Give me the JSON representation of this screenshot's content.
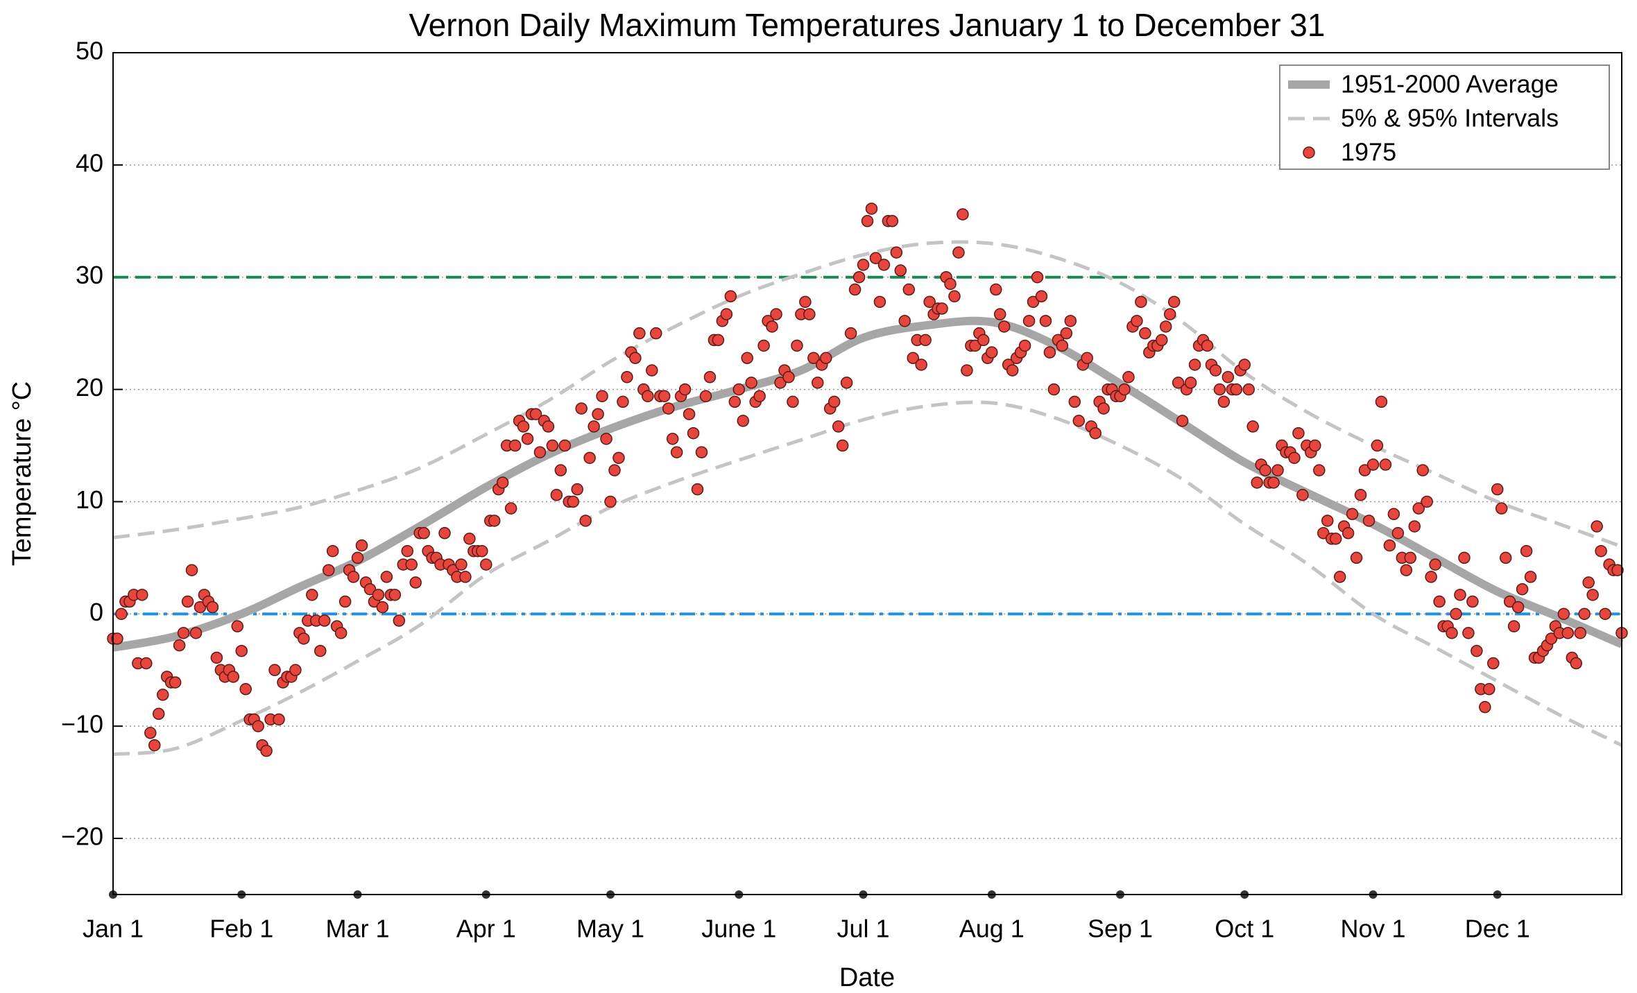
{
  "chart_data": {
    "type": "climate",
    "title": "Vernon Daily Maximum Temperatures January 1 to December 31",
    "xlabel": "Date",
    "ylabel": "Temperature °C",
    "xlim": [
      1,
      365
    ],
    "ylim": [
      -25,
      50
    ],
    "xticks": [
      {
        "value": 1,
        "label": "Jan 1"
      },
      {
        "value": 32,
        "label": "Feb 1"
      },
      {
        "value": 60,
        "label": "Mar 1"
      },
      {
        "value": 91,
        "label": "Apr 1"
      },
      {
        "value": 121,
        "label": "May 1"
      },
      {
        "value": 152,
        "label": "June 1"
      },
      {
        "value": 182,
        "label": "Jul 1"
      },
      {
        "value": 213,
        "label": "Aug 1"
      },
      {
        "value": 244,
        "label": "Sep 1"
      },
      {
        "value": 274,
        "label": "Oct 1"
      },
      {
        "value": 305,
        "label": "Nov 1"
      },
      {
        "value": 335,
        "label": "Dec 1"
      }
    ],
    "yticks": [
      {
        "value": -20,
        "label": "−20"
      },
      {
        "value": -10,
        "label": "−10"
      },
      0,
      10,
      20,
      30,
      40,
      50
    ],
    "grid": true,
    "legend": "upper right",
    "hlines": [
      {
        "value": 30,
        "color": "#178a50",
        "dash": "dashed"
      },
      {
        "value": 0,
        "color": "#1a90e8",
        "dash": "dashdot"
      }
    ],
    "curve_x": [
      1,
      16,
      32,
      46,
      60,
      75,
      91,
      106,
      121,
      136,
      152,
      167,
      182,
      197,
      213,
      228,
      244,
      259,
      274,
      289,
      305,
      320,
      335,
      350,
      365
    ],
    "series": [
      {
        "name": "1951-2000 Average",
        "color": "#a6a6a6",
        "kind": "line",
        "values": [
          -3,
          -2,
          0,
          2.4,
          4.7,
          7.8,
          11.3,
          14.2,
          16.5,
          18.4,
          20,
          21.7,
          24.6,
          25.7,
          26,
          24,
          20.5,
          17,
          13.5,
          10.8,
          8,
          5,
          2,
          -0.3,
          -2.7
        ]
      },
      {
        "name": "5% & 95% Intervals",
        "color": "#c4c4c4",
        "kind": "band",
        "lower": [
          -12.5,
          -12,
          -9.5,
          -7,
          -4.2,
          -1,
          3.5,
          6.5,
          9.5,
          11.7,
          13.7,
          15.5,
          17.3,
          18.5,
          18.8,
          17.5,
          15,
          12,
          8,
          4.5,
          0,
          -3,
          -6,
          -9,
          -11.7
        ],
        "upper": [
          6.8,
          7.5,
          8.5,
          9.5,
          11,
          13,
          16,
          19,
          22.5,
          25.5,
          28.3,
          30.3,
          32,
          33,
          33,
          31.8,
          29.5,
          26,
          21.5,
          18,
          15,
          12.5,
          10,
          8,
          6
        ]
      },
      {
        "name": "1975",
        "color": "#e8453c",
        "kind": "scatter",
        "x": [
          1,
          2,
          3,
          4,
          5,
          6,
          7,
          8,
          9,
          10,
          11,
          12,
          13,
          14,
          15,
          16,
          17,
          18,
          19,
          20,
          21,
          22,
          23,
          24,
          25,
          26,
          27,
          28,
          29,
          30,
          31,
          32,
          33,
          34,
          35,
          36,
          37,
          38,
          39,
          40,
          41,
          42,
          43,
          44,
          45,
          46,
          47,
          48,
          49,
          50,
          51,
          52,
          53,
          54,
          55,
          56,
          57,
          58,
          59,
          60,
          61,
          62,
          63,
          64,
          65,
          66,
          67,
          68,
          69,
          70,
          71,
          72,
          73,
          74,
          75,
          76,
          77,
          78,
          79,
          80,
          81,
          82,
          83,
          84,
          85,
          86,
          87,
          88,
          89,
          90,
          91,
          92,
          93,
          94,
          95,
          96,
          97,
          98,
          99,
          100,
          101,
          102,
          103,
          104,
          105,
          106,
          107,
          108,
          109,
          110,
          111,
          112,
          113,
          114,
          115,
          116,
          117,
          118,
          119,
          120,
          121,
          122,
          123,
          124,
          125,
          126,
          127,
          128,
          129,
          130,
          131,
          132,
          133,
          134,
          135,
          136,
          137,
          138,
          139,
          140,
          141,
          142,
          143,
          144,
          145,
          146,
          147,
          148,
          149,
          150,
          151,
          152,
          153,
          154,
          155,
          156,
          157,
          158,
          159,
          160,
          161,
          162,
          163,
          164,
          165,
          166,
          167,
          168,
          169,
          170,
          171,
          172,
          173,
          174,
          175,
          176,
          177,
          178,
          179,
          180,
          181,
          182,
          183,
          184,
          185,
          186,
          187,
          188,
          189,
          190,
          191,
          192,
          193,
          194,
          195,
          196,
          197,
          198,
          199,
          200,
          201,
          202,
          203,
          204,
          205,
          206,
          207,
          208,
          209,
          210,
          211,
          212,
          213,
          214,
          215,
          216,
          217,
          218,
          219,
          220,
          221,
          222,
          223,
          224,
          225,
          226,
          227,
          228,
          229,
          230,
          231,
          232,
          233,
          234,
          235,
          236,
          237,
          238,
          239,
          240,
          241,
          242,
          243,
          244,
          245,
          246,
          247,
          248,
          249,
          250,
          251,
          252,
          253,
          254,
          255,
          256,
          257,
          258,
          259,
          260,
          261,
          262,
          263,
          264,
          265,
          266,
          267,
          268,
          269,
          270,
          271,
          272,
          273,
          274,
          275,
          276,
          277,
          278,
          279,
          280,
          281,
          282,
          283,
          284,
          285,
          286,
          287,
          288,
          289,
          290,
          291,
          292,
          293,
          294,
          295,
          296,
          297,
          298,
          299,
          300,
          301,
          302,
          303,
          304,
          305,
          306,
          307,
          308,
          309,
          310,
          311,
          312,
          313,
          314,
          315,
          316,
          317,
          318,
          319,
          320,
          321,
          322,
          323,
          324,
          325,
          326,
          327,
          328,
          329,
          330,
          331,
          332,
          333,
          334,
          335,
          336,
          337,
          338,
          339,
          340,
          341,
          342,
          343,
          344,
          345,
          346,
          347,
          348,
          349,
          350,
          351,
          352,
          353,
          354,
          355,
          356,
          357,
          358,
          359,
          360,
          361,
          362,
          363,
          364,
          365
        ],
        "values": [
          -2.2,
          -2.2,
          0,
          1.1,
          1.1,
          1.7,
          -4.4,
          1.7,
          -4.4,
          -10.6,
          -11.7,
          -8.9,
          -7.2,
          -5.6,
          -6.1,
          -6.1,
          -2.8,
          -1.7,
          1.1,
          3.9,
          -1.7,
          0.6,
          1.7,
          1.1,
          0.6,
          -3.9,
          -5,
          -5.6,
          -5,
          -5.6,
          -1.1,
          -3.3,
          -6.7,
          -9.4,
          -9.4,
          -10,
          -11.7,
          -12.2,
          -9.4,
          -5,
          -9.4,
          -6.1,
          -5.6,
          -5.6,
          -5,
          -1.7,
          -2.2,
          -0.6,
          1.7,
          -0.6,
          -3.3,
          -0.6,
          3.9,
          5.6,
          -1.1,
          -1.7,
          1.1,
          3.9,
          3.3,
          5,
          6.1,
          2.8,
          2.2,
          1.1,
          1.7,
          0.6,
          3.3,
          1.7,
          1.7,
          -0.6,
          4.4,
          5.6,
          4.4,
          2.8,
          7.2,
          7.2,
          5.6,
          5,
          5,
          4.4,
          7.2,
          4.4,
          3.9,
          3.3,
          4.4,
          3.3,
          6.7,
          5.6,
          5.6,
          5.6,
          4.4,
          8.3,
          8.3,
          11.1,
          11.7,
          15,
          9.4,
          15,
          17.2,
          16.7,
          15.6,
          17.8,
          17.8,
          14.4,
          17.2,
          16.7,
          15,
          10.6,
          12.8,
          15,
          10,
          10,
          11.1,
          18.3,
          8.3,
          13.9,
          16.7,
          17.8,
          19.4,
          15.6,
          10,
          12.8,
          13.9,
          18.9,
          21.1,
          23.3,
          22.8,
          25,
          20,
          19.4,
          21.7,
          25,
          19.4,
          19.4,
          18.3,
          15.6,
          14.4,
          19.4,
          20,
          17.8,
          16.1,
          11.1,
          14.4,
          19.4,
          21.1,
          24.4,
          24.4,
          26.1,
          26.7,
          28.3,
          18.9,
          20,
          17.2,
          22.8,
          20.6,
          18.9,
          19.4,
          23.9,
          26.1,
          25.6,
          26.7,
          20.6,
          21.7,
          21.1,
          18.9,
          23.9,
          26.7,
          27.8,
          26.7,
          22.8,
          20.6,
          22.2,
          22.8,
          18.3,
          18.9,
          16.7,
          15,
          20.6,
          25,
          28.9,
          30,
          31.1,
          35,
          36.1,
          31.7,
          27.8,
          31.1,
          35,
          35,
          32.2,
          30.6,
          26.1,
          28.9,
          22.8,
          24.4,
          22.2,
          24.4,
          27.8,
          26.7,
          27.2,
          27.2,
          30,
          29.4,
          28.3,
          32.2,
          35.6,
          21.7,
          23.9,
          23.9,
          25,
          24.4,
          22.8,
          23.3,
          28.9,
          26.7,
          25.6,
          22.2,
          21.7,
          22.8,
          23.3,
          23.9,
          26.1,
          27.8,
          30,
          28.3,
          26.1,
          23.3,
          20,
          24.4,
          23.9,
          25,
          26.1,
          18.9,
          17.2,
          22.2,
          22.8,
          16.7,
          16.1,
          18.9,
          18.3,
          20,
          20,
          19.4,
          19.4,
          20,
          21.1,
          25.6,
          26.1,
          27.8,
          25,
          23.3,
          23.9,
          23.9,
          24.4,
          25.6,
          26.7,
          27.8,
          20.6,
          17.2,
          20,
          20.6,
          22.2,
          23.9,
          24.4,
          23.9,
          22.2,
          21.7,
          20,
          18.9,
          21.1,
          20,
          20,
          21.7,
          22.2,
          20,
          16.7,
          11.7,
          13.3,
          12.8,
          11.7,
          11.7,
          12.8,
          15,
          14.4,
          14.4,
          13.9,
          16.1,
          10.6,
          15,
          14.4,
          15,
          12.8,
          7.2,
          8.3,
          6.7,
          6.7,
          3.3,
          7.8,
          7.2,
          8.9,
          5,
          10.6,
          12.8,
          8.3,
          13.3,
          15,
          18.9,
          13.3,
          6.1,
          8.9,
          7.2,
          5,
          3.9,
          5,
          7.8,
          9.4,
          12.8,
          10,
          3.3,
          4.4,
          1.1,
          -1.1,
          -1.1,
          -1.7,
          0,
          1.7,
          5,
          -1.7,
          1.1,
          -3.3,
          -6.7,
          -8.3,
          -6.7,
          -4.4,
          11.1,
          9.4,
          5,
          1.1,
          -1.1,
          0.6,
          2.2,
          5.6,
          3.3,
          -3.9,
          -3.9,
          -3.3,
          -2.8,
          -2.2,
          -1.1,
          -1.7,
          0,
          -1.7,
          -3.9,
          -4.4,
          -1.7,
          0,
          2.8,
          1.7,
          7.8,
          5.6,
          0,
          4.4,
          3.9,
          3.9,
          -1.7
        ]
      }
    ]
  }
}
